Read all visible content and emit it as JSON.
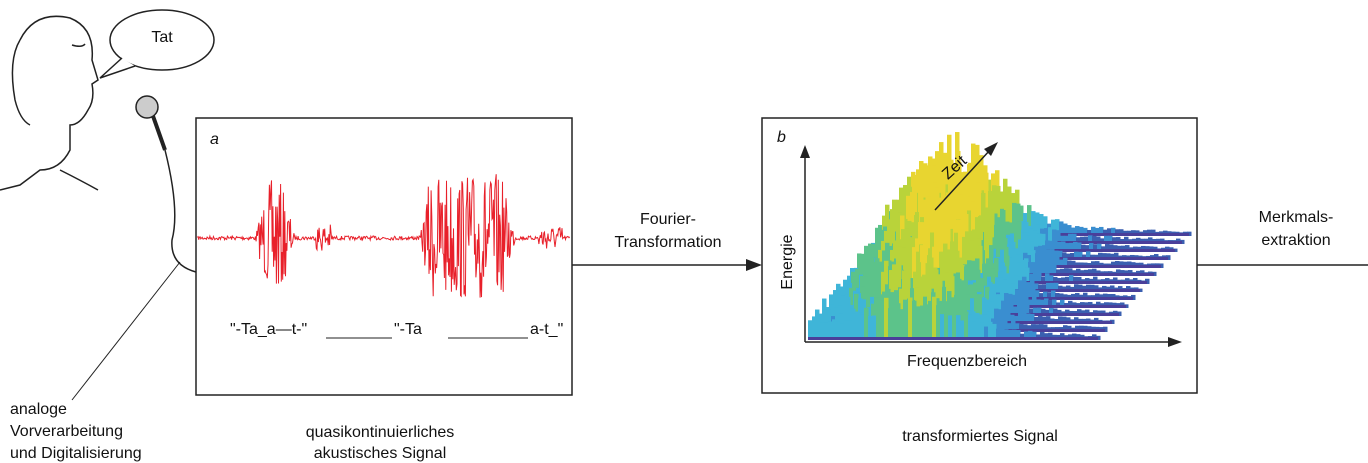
{
  "speech_bubble": "Tat",
  "panel_a": {
    "label": "a",
    "transcription": [
      "\"-Ta_a—t-\"",
      "\"-Ta",
      "a-t_\""
    ],
    "caption": [
      "quasikontinuierliches",
      "akustisches Signal"
    ]
  },
  "step_1": [
    "Fourier-",
    "Transformation"
  ],
  "panel_b": {
    "label": "b",
    "axis_time": "Zeit",
    "axis_energy": "Energie",
    "axis_frequency": "Frequenzbereich",
    "caption": "transformiertes Signal"
  },
  "step_2": [
    "Merkmals-",
    "extraktion"
  ],
  "preprocessing": [
    "analoge",
    "Vorverarbeitung",
    "und Digitalisierung"
  ]
}
